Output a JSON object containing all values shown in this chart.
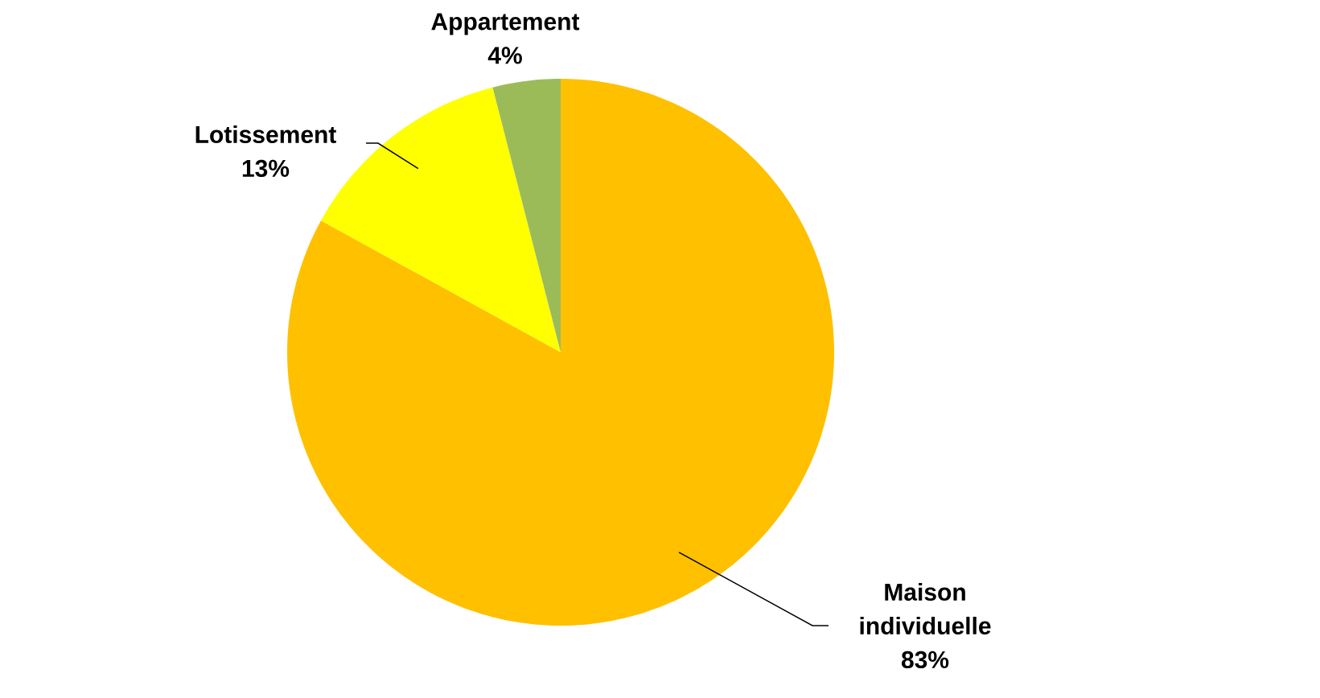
{
  "chart_data": {
    "type": "pie",
    "categories": [
      "Maison individuelle",
      "Lotissement",
      "Appartement"
    ],
    "values": [
      83,
      13,
      4
    ],
    "value_labels": [
      "83%",
      "13%",
      "4%"
    ],
    "colors": [
      "#ffc000",
      "#ffff00",
      "#9bbb59"
    ]
  }
}
